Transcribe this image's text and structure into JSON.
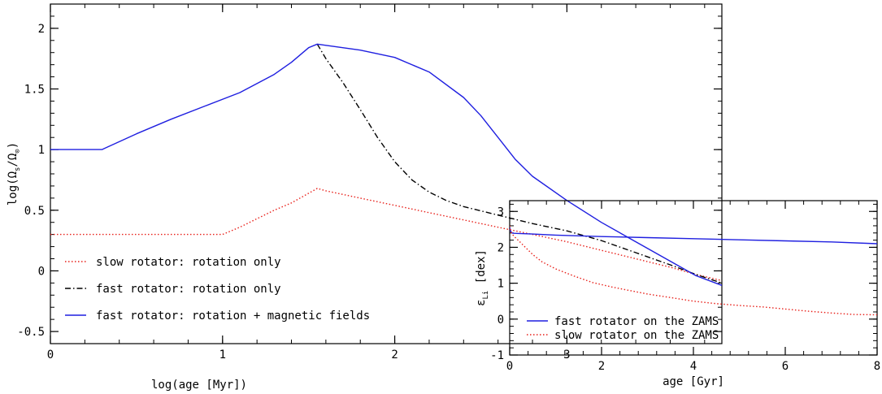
{
  "chart_data": [
    {
      "type": "line",
      "title": "",
      "xlabel": "log(age [Myr])",
      "ylabel": "log(Ω_s/Ω_⊙)",
      "ylabel_parts": {
        "pre": "log(Ω",
        "sub1": "s",
        "mid": "/Ω",
        "sub2": "⊙",
        "post": ")"
      },
      "xlim": [
        0,
        3.9
      ],
      "ylim": [
        -0.6,
        2.2
      ],
      "x_major_ticks": [
        0,
        1,
        2,
        3
      ],
      "x_tick_labels": [
        "0",
        "1",
        "2",
        "3"
      ],
      "x_minor_step": 0.2,
      "y_major_ticks": [
        -0.5,
        0,
        0.5,
        1,
        1.5,
        2
      ],
      "y_tick_labels": [
        "-0.5",
        "0",
        "0.5",
        "1",
        "1.5",
        "2"
      ],
      "y_minor_step": 0.1,
      "grid": false,
      "legend_position": "bottom-left",
      "series": [
        {
          "name": "slow rotator: rotation only",
          "color": "#e8201a",
          "style": "dotted",
          "x": [
            0,
            1.0,
            1.1,
            1.2,
            1.3,
            1.4,
            1.5,
            1.55,
            1.6,
            1.8,
            2.0,
            2.2,
            2.4,
            2.6,
            2.8,
            3.0,
            3.2,
            3.4,
            3.6,
            3.75,
            3.9
          ],
          "y": [
            0.3,
            0.3,
            0.36,
            0.43,
            0.5,
            0.56,
            0.64,
            0.68,
            0.66,
            0.6,
            0.54,
            0.48,
            0.42,
            0.36,
            0.3,
            0.24,
            0.17,
            0.1,
            0.03,
            -0.03,
            -0.08
          ]
        },
        {
          "name": "fast rotator: rotation only",
          "color": "#000000",
          "style": "dashdot",
          "x": [
            1.55,
            1.6,
            1.7,
            1.8,
            1.9,
            2.0,
            2.1,
            2.2,
            2.3,
            2.4,
            2.6,
            2.8,
            3.0,
            3.2,
            3.4,
            3.6,
            3.75,
            3.9
          ],
          "y": [
            1.87,
            1.75,
            1.55,
            1.33,
            1.1,
            0.9,
            0.75,
            0.65,
            0.58,
            0.53,
            0.46,
            0.39,
            0.33,
            0.25,
            0.15,
            0.05,
            -0.03,
            -0.1
          ]
        },
        {
          "name": "fast rotator: rotation + magnetic fields",
          "color": "#1f1fe0",
          "style": "solid",
          "x": [
            0,
            0.3,
            0.5,
            0.7,
            0.9,
            1.1,
            1.3,
            1.4,
            1.5,
            1.55,
            1.6,
            1.8,
            2.0,
            2.2,
            2.4,
            2.5,
            2.6,
            2.7,
            2.8,
            3.0,
            3.2,
            3.4,
            3.6,
            3.75,
            3.9
          ],
          "y": [
            1.0,
            1.0,
            1.13,
            1.25,
            1.36,
            1.47,
            1.62,
            1.72,
            1.84,
            1.87,
            1.86,
            1.82,
            1.76,
            1.64,
            1.43,
            1.28,
            1.1,
            0.92,
            0.78,
            0.58,
            0.4,
            0.24,
            0.08,
            -0.04,
            -0.12
          ]
        }
      ]
    },
    {
      "type": "line",
      "title": "",
      "xlabel": "age [Gyr]",
      "ylabel": "ε_Li [dex]",
      "ylabel_parts": {
        "pre": "ε",
        "sub1": "Li",
        "post": " [dex]"
      },
      "xlim": [
        0,
        8
      ],
      "ylim": [
        -1,
        3.3
      ],
      "x_major_ticks": [
        0,
        2,
        4,
        6,
        8
      ],
      "x_tick_labels": [
        "0",
        "2",
        "4",
        "6",
        "8"
      ],
      "x_minor_step": 0.4,
      "y_major_ticks": [
        -1,
        0,
        1,
        2,
        3
      ],
      "y_tick_labels": [
        "-1",
        "0",
        "1",
        "2",
        "3"
      ],
      "y_minor_step": 0.2,
      "grid": false,
      "legend_position": "bottom-left",
      "series": [
        {
          "name": "fast rotator on the ZAMS",
          "color": "#1f1fe0",
          "style": "solid",
          "x": [
            0,
            0.02,
            0.05,
            0.1,
            0.5,
            1,
            2,
            3,
            4,
            5,
            6,
            7,
            8
          ],
          "y": [
            2.55,
            2.45,
            2.4,
            2.39,
            2.37,
            2.34,
            2.3,
            2.27,
            2.24,
            2.21,
            2.18,
            2.15,
            2.1
          ]
        },
        {
          "name": "slow rotator on the ZAMS",
          "color": "#e8201a",
          "style": "dotted",
          "x": [
            0,
            0.02,
            0.05,
            0.1,
            0.2,
            0.3,
            0.5,
            0.7,
            1.0,
            1.4,
            1.8,
            2.2,
            2.6,
            3.0,
            3.5,
            4.0,
            4.5,
            5.0,
            5.5,
            6.0,
            6.5,
            7.0,
            7.5,
            8.0
          ],
          "y": [
            2.6,
            2.45,
            2.38,
            2.3,
            2.18,
            2.05,
            1.8,
            1.6,
            1.4,
            1.2,
            1.02,
            0.9,
            0.8,
            0.7,
            0.6,
            0.5,
            0.43,
            0.38,
            0.34,
            0.28,
            0.22,
            0.17,
            0.13,
            0.12
          ]
        }
      ]
    }
  ]
}
